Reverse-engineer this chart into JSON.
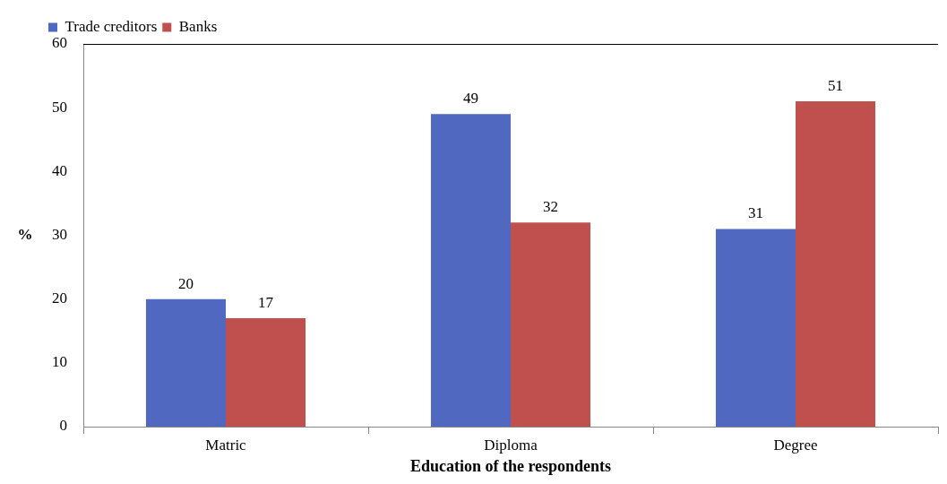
{
  "chart_data": {
    "type": "bar",
    "xlabel": "Education of the respondents",
    "ylabel": "%",
    "categories": [
      "Matric",
      "Diploma",
      "Degree"
    ],
    "series": [
      {
        "name": "Trade creditors",
        "color": "#5068c0",
        "values": [
          20,
          49,
          31
        ]
      },
      {
        "name": "Banks",
        "color": "#c0504d",
        "values": [
          17,
          32,
          51
        ]
      }
    ],
    "ylim": [
      0,
      60
    ],
    "yticks": [
      0,
      10,
      20,
      30,
      40,
      50,
      60
    ],
    "data_labels": true,
    "legend": "top left"
  }
}
